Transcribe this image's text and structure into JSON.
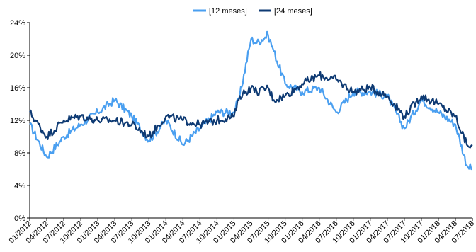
{
  "chart_data": {
    "type": "line",
    "yunit": "%",
    "ylim": [
      0,
      24
    ],
    "yticks": [
      "0%",
      "4%",
      "8%",
      "12%",
      "16%",
      "20%",
      "24%"
    ],
    "xticks": [
      "01/2012",
      "04/2012",
      "07/2012",
      "10/2012",
      "01/2013",
      "04/2013",
      "07/2013",
      "10/2013",
      "01/2014",
      "04/2014",
      "07/2014",
      "10/2014",
      "01/2015",
      "04/2015",
      "07/2015",
      "10/2015",
      "01/2016",
      "04/2016",
      "07/2016",
      "10/2016",
      "01/2017",
      "04/2017",
      "07/2017",
      "10/2017",
      "01/2018",
      "04/2018",
      "07/2018"
    ],
    "grid": false,
    "legend_position": "top-center",
    "x": [
      "01/2012",
      "04/2012",
      "07/2012",
      "10/2012",
      "01/2013",
      "04/2013",
      "07/2013",
      "10/2013",
      "01/2014",
      "04/2014",
      "07/2014",
      "10/2014",
      "01/2015",
      "02/2015",
      "04/2015",
      "05/2015",
      "07/2015",
      "08/2015",
      "10/2015",
      "01/2016",
      "04/2016",
      "07/2016",
      "10/2016",
      "01/2017",
      "04/2017",
      "07/2017",
      "10/2017",
      "01/2018",
      "04/2018",
      "06/2018",
      "07/2018"
    ],
    "series": [
      {
        "name": "[12 meses]",
        "color": "#4a9ff0",
        "values": [
          11.5,
          7.5,
          10.0,
          11.5,
          13.0,
          14.5,
          12.5,
          9.5,
          12.0,
          9.0,
          11.0,
          13.0,
          13.0,
          15.0,
          22.0,
          21.5,
          22.5,
          20.5,
          16.5,
          15.5,
          16.0,
          13.0,
          15.5,
          15.5,
          15.0,
          11.0,
          14.5,
          13.0,
          11.5,
          6.5,
          6.0
        ]
      },
      {
        "name": "[24 meses]",
        "color": "#0e3a73",
        "values": [
          13.0,
          10.0,
          12.0,
          12.5,
          12.0,
          12.0,
          11.5,
          10.0,
          12.5,
          12.0,
          11.5,
          12.0,
          12.5,
          15.0,
          16.0,
          15.5,
          16.0,
          14.5,
          15.0,
          16.5,
          17.5,
          17.0,
          15.5,
          16.0,
          15.0,
          12.5,
          15.0,
          14.0,
          12.5,
          9.0,
          9.0
        ]
      }
    ]
  }
}
